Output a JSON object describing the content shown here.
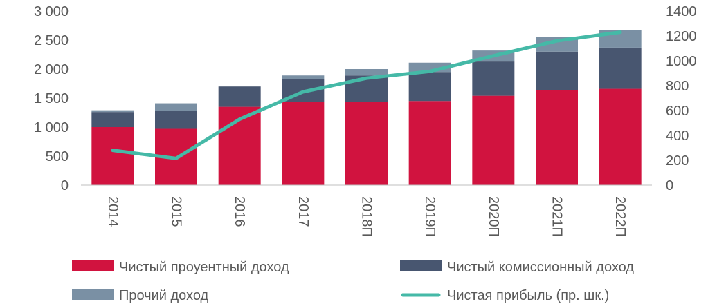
{
  "chart_data": {
    "type": "bar",
    "stacked": true,
    "categories": [
      "2014",
      "2015",
      "2016",
      "2017",
      "2018П",
      "2019П",
      "2020П",
      "2021П",
      "2022П"
    ],
    "series": [
      {
        "name": "Чистый проуентный доход",
        "values": [
          1000,
          970,
          1350,
          1430,
          1440,
          1450,
          1540,
          1640,
          1660
        ],
        "color": "#d1133f",
        "axis": "left"
      },
      {
        "name": "Чистый комиссионный доход",
        "values": [
          260,
          310,
          350,
          400,
          450,
          500,
          590,
          660,
          710
        ],
        "color": "#485670",
        "axis": "left"
      },
      {
        "name": "Прочий доход",
        "values": [
          30,
          130,
          0,
          60,
          110,
          160,
          190,
          250,
          300
        ],
        "color": "#7a90a4",
        "axis": "left"
      },
      {
        "name": "Чистая прибыль (пр. шк.)",
        "type": "line",
        "values": [
          280,
          215,
          530,
          750,
          860,
          915,
          1040,
          1160,
          1230
        ],
        "color": "#45b9a7",
        "axis": "right"
      }
    ],
    "y_left": {
      "min": 0,
      "max": 3000,
      "ticks": [
        0,
        500,
        1000,
        1500,
        2000,
        2500,
        3000
      ],
      "tick_labels": [
        "0",
        "500",
        "1 000",
        "1 500",
        "2 000",
        "2 500",
        "3 000"
      ]
    },
    "y_right": {
      "min": 0,
      "max": 1400,
      "ticks": [
        0,
        200,
        400,
        600,
        800,
        1000,
        1200,
        1400
      ],
      "tick_labels": [
        "0",
        "200",
        "400",
        "600",
        "800",
        "1000",
        "1200",
        "1400"
      ]
    },
    "grid": false,
    "legend_position": "bottom",
    "axis_color": "#bfbfbf",
    "text_color": "#595959"
  }
}
